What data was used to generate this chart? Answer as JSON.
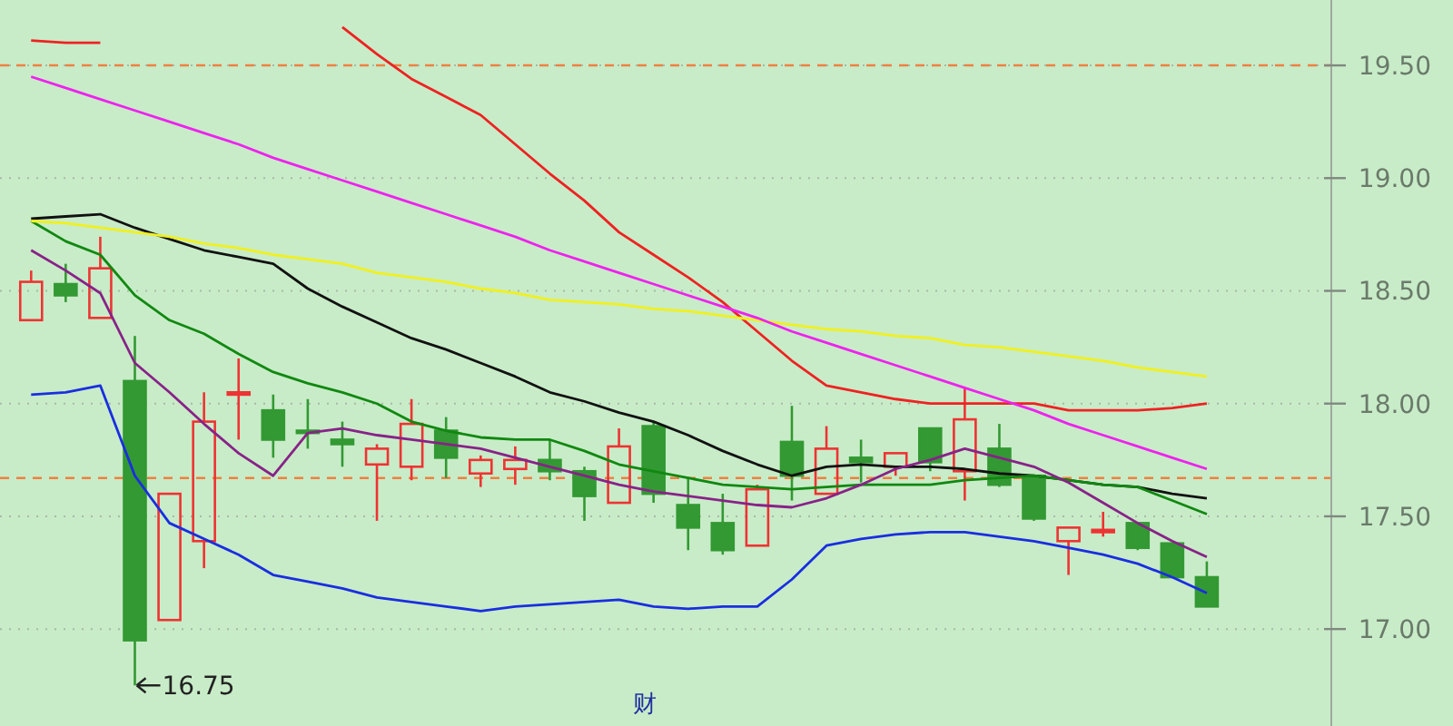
{
  "chart_data": {
    "type": "candlestick",
    "categories": [
      null,
      null,
      null,
      null,
      null,
      null,
      null,
      null,
      null,
      null,
      null,
      null,
      null,
      null,
      null,
      null,
      null,
      null,
      null,
      null,
      null,
      null,
      null,
      null,
      null,
      null,
      null,
      null,
      null,
      null,
      null,
      null,
      null,
      null,
      null
    ],
    "ylim": [
      16.57,
      19.79
    ],
    "yticks": [
      {
        "value": 17,
        "label": "17.00"
      },
      {
        "value": 17.5,
        "label": "17.50"
      },
      {
        "value": 18,
        "label": "18.00"
      },
      {
        "value": 18.5,
        "label": "18.50"
      },
      {
        "value": 19,
        "label": "19.00"
      },
      {
        "value": 19.5,
        "label": "19.50"
      }
    ],
    "tick_labels": "y",
    "grid": "y",
    "ohlc": [
      [
        18.37,
        18.59,
        18.37,
        18.54
      ],
      [
        18.53,
        18.62,
        18.45,
        18.48
      ],
      [
        18.38,
        18.74,
        18.38,
        18.6
      ],
      [
        18.1,
        18.3,
        16.75,
        16.95
      ],
      [
        17.04,
        17.6,
        17.04,
        17.6
      ],
      [
        17.39,
        18.05,
        17.27,
        17.92
      ],
      [
        18.04,
        18.2,
        17.84,
        18.05
      ],
      [
        17.97,
        18.04,
        17.76,
        17.84
      ],
      [
        17.88,
        18.02,
        17.8,
        17.87
      ],
      [
        17.84,
        17.92,
        17.72,
        17.82
      ],
      [
        17.73,
        17.82,
        17.48,
        17.8
      ],
      [
        17.72,
        18.02,
        17.66,
        17.91
      ],
      [
        17.88,
        17.94,
        17.67,
        17.76
      ],
      [
        17.69,
        17.77,
        17.63,
        17.75
      ],
      [
        17.71,
        17.81,
        17.64,
        17.75
      ],
      [
        17.75,
        17.84,
        17.66,
        17.7
      ],
      [
        17.7,
        17.72,
        17.48,
        17.59
      ],
      [
        17.56,
        17.89,
        17.56,
        17.81
      ],
      [
        17.9,
        17.92,
        17.56,
        17.6
      ],
      [
        17.55,
        17.67,
        17.35,
        17.45
      ],
      [
        17.47,
        17.6,
        17.33,
        17.35
      ],
      [
        17.37,
        17.64,
        17.37,
        17.62
      ],
      [
        17.83,
        17.99,
        17.57,
        17.68
      ],
      [
        17.6,
        17.9,
        17.6,
        17.8
      ],
      [
        17.76,
        17.84,
        17.65,
        17.74
      ],
      [
        17.72,
        17.78,
        17.68,
        17.78
      ],
      [
        17.89,
        17.89,
        17.7,
        17.74
      ],
      [
        17.7,
        18.07,
        17.57,
        17.93
      ],
      [
        17.8,
        17.91,
        17.63,
        17.64
      ],
      [
        17.68,
        17.68,
        17.48,
        17.49
      ],
      [
        17.39,
        17.45,
        17.24,
        17.45
      ],
      [
        17.43,
        17.52,
        17.41,
        17.44
      ],
      [
        17.47,
        17.47,
        17.35,
        17.36
      ],
      [
        17.38,
        17.38,
        17.23,
        17.23
      ],
      [
        17.23,
        17.3,
        17.1,
        17.1
      ]
    ],
    "colors": [
      "#ee3333",
      "#339933",
      "#ee3333",
      "#339933",
      "#ee3333",
      "#ee3333",
      "#ee3333",
      "#339933",
      "#339933",
      "#339933",
      "#ee3333",
      "#ee3333",
      "#339933",
      "#ee3333",
      "#ee3333",
      "#339933",
      "#339933",
      "#ee3333",
      "#339933",
      "#339933",
      "#339933",
      "#ee3333",
      "#339933",
      "#ee3333",
      "#339933",
      "#ee3333",
      "#339933",
      "#ee3333",
      "#339933",
      "#339933",
      "#ee3333",
      "#ee3333",
      "#339933",
      "#339933",
      "#339933"
    ],
    "series": [
      {
        "type": "line",
        "color": "#ee2222",
        "values": [
          19.61,
          19.6,
          19.6,
          null,
          null,
          null,
          null,
          null,
          null,
          19.67,
          19.55,
          19.44,
          19.36,
          19.28,
          19.15,
          19.02,
          18.9,
          18.76,
          18.66,
          18.56,
          18.45,
          18.32,
          18.19,
          18.08,
          18.05,
          18.02,
          18.0,
          18.0,
          18.0,
          18.0,
          17.97,
          17.97,
          17.97,
          17.98,
          18.0
        ]
      },
      {
        "type": "line",
        "color": "#1a2ee0",
        "values": [
          18.04,
          18.05,
          18.08,
          17.68,
          17.47,
          17.4,
          17.33,
          17.24,
          17.21,
          17.18,
          17.14,
          17.12,
          17.1,
          17.08,
          17.1,
          17.11,
          17.12,
          17.13,
          17.1,
          17.09,
          17.1,
          17.1,
          17.22,
          17.37,
          17.4,
          17.42,
          17.43,
          17.43,
          17.41,
          17.39,
          17.36,
          17.33,
          17.29,
          17.23,
          17.16
        ]
      },
      {
        "type": "line",
        "color": "#111111",
        "values": [
          18.82,
          18.83,
          18.84,
          18.78,
          18.73,
          18.68,
          18.65,
          18.62,
          18.51,
          18.43,
          18.36,
          18.29,
          18.24,
          18.18,
          18.12,
          18.05,
          18.01,
          17.96,
          17.92,
          17.86,
          17.79,
          17.73,
          17.68,
          17.72,
          17.73,
          17.72,
          17.72,
          17.71,
          17.69,
          17.68,
          17.66,
          17.64,
          17.63,
          17.6,
          17.58
        ]
      },
      {
        "type": "line",
        "color": "#118811",
        "values": [
          18.81,
          18.72,
          18.66,
          18.48,
          18.37,
          18.31,
          18.22,
          18.14,
          18.09,
          18.05,
          18.0,
          17.92,
          17.88,
          17.85,
          17.84,
          17.84,
          17.79,
          17.73,
          17.7,
          17.67,
          17.64,
          17.63,
          17.62,
          17.63,
          17.64,
          17.64,
          17.64,
          17.66,
          17.67,
          17.68,
          17.66,
          17.64,
          17.63,
          17.57,
          17.51
        ]
      },
      {
        "type": "line",
        "color": "#882288",
        "values": [
          18.68,
          18.59,
          18.49,
          18.18,
          18.05,
          17.91,
          17.78,
          17.68,
          17.87,
          17.89,
          17.86,
          17.84,
          17.82,
          17.8,
          17.76,
          17.72,
          17.68,
          17.64,
          17.61,
          17.59,
          17.57,
          17.55,
          17.54,
          17.58,
          17.64,
          17.71,
          17.75,
          17.8,
          17.76,
          17.72,
          17.65,
          17.56,
          17.47,
          17.39,
          17.32
        ]
      },
      {
        "type": "line",
        "color": "#f0f020",
        "values": [
          18.81,
          18.8,
          18.78,
          18.76,
          18.74,
          18.71,
          18.69,
          18.66,
          18.64,
          18.62,
          18.58,
          18.56,
          18.54,
          18.51,
          18.49,
          18.46,
          18.45,
          18.44,
          18.42,
          18.41,
          18.39,
          18.37,
          18.35,
          18.33,
          18.32,
          18.3,
          18.29,
          18.26,
          18.25,
          18.23,
          18.21,
          18.19,
          18.16,
          18.14,
          18.12
        ]
      },
      {
        "type": "line",
        "color": "#ee22ee",
        "values": [
          19.45,
          19.4,
          19.35,
          19.3,
          19.25,
          19.2,
          19.15,
          19.09,
          19.04,
          18.99,
          18.94,
          18.89,
          18.84,
          18.79,
          18.74,
          18.68,
          18.63,
          18.58,
          18.53,
          18.48,
          18.43,
          18.38,
          18.32,
          18.27,
          18.22,
          18.17,
          18.12,
          18.07,
          18.02,
          17.97,
          17.91,
          17.86,
          17.81,
          17.76,
          17.71
        ]
      }
    ],
    "ref_lines": [
      {
        "axis": "y",
        "value": 19.5,
        "color": "#f08040",
        "line_style": "dashed"
      },
      {
        "axis": "y",
        "value": 17.67,
        "color": "#f08040",
        "line_style": "dashed"
      }
    ],
    "annotations": [
      "16.75",
      "财"
    ]
  }
}
